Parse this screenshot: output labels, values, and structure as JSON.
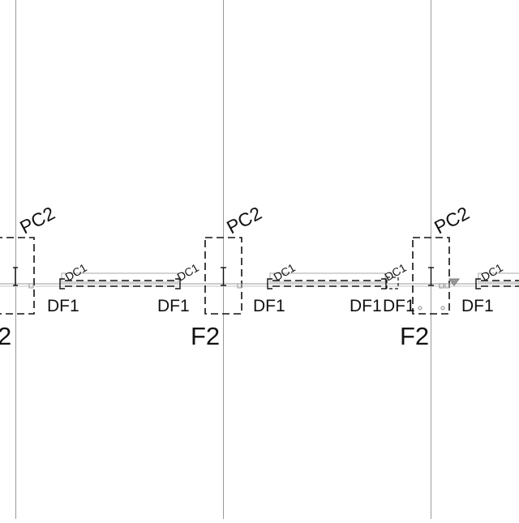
{
  "colors": {
    "background": "#ffffff",
    "grid_line": "#9a9a9a",
    "ink": "#111111",
    "faint": "#a8a8a8"
  },
  "columns": [
    {
      "pc_label": "PC2",
      "f_label": "2"
    },
    {
      "pc_label": "PC2",
      "f_label": "F2"
    },
    {
      "pc_label": "PC2",
      "f_label": "F2"
    }
  ],
  "beams": [
    {
      "dc_left": "DC1",
      "dc_right": "DC1",
      "df_left": "DF1",
      "df_right": "DF1"
    },
    {
      "dc_left": "DC1",
      "dc_right": "DC1",
      "df_left": "DF1",
      "df_right": "DF1"
    },
    {
      "dc_left": "DC1",
      "dc_right": "",
      "df_left": "DF1",
      "df_right": "DF1"
    }
  ],
  "df_between_label": "DF1"
}
